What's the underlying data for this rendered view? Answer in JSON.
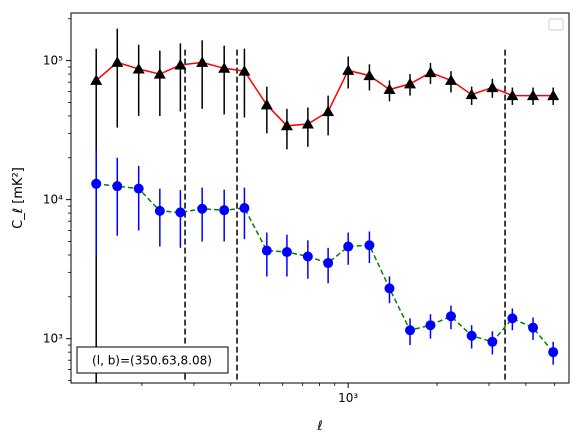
{
  "chart_data": {
    "type": "scatter",
    "xlabel": "ℓ",
    "ylabel": "C_ℓ [mK²]",
    "xscale": "log",
    "yscale": "log",
    "xlim": [
      115,
      5600
    ],
    "ylim": [
      480,
      220000
    ],
    "x_ticks": [
      {
        "value": 1000,
        "label": "10³"
      }
    ],
    "y_ticks": [
      {
        "value": 1000,
        "label": "10³"
      },
      {
        "value": 10000,
        "label": "10⁴"
      },
      {
        "value": 100000,
        "label": "10⁵"
      }
    ],
    "annotation": "(l, b)=(350.63,8.08)",
    "legend": {
      "placement": "top-right",
      "entries": []
    },
    "vlines": [
      280,
      420,
      3400
    ],
    "series": [
      {
        "marker": "triangle",
        "marker_color": "#000000",
        "line_color": "#ff0000",
        "line_style": "solid",
        "errorbar_color": "#000000",
        "x": [
          140,
          165,
          195,
          230,
          270,
          320,
          380,
          445,
          530,
          620,
          730,
          855,
          1000,
          1180,
          1380,
          1620,
          1900,
          2230,
          2620,
          3080,
          3600,
          4230,
          4950
        ],
        "y": [
          72000,
          97000,
          87000,
          80000,
          93000,
          97000,
          88000,
          84000,
          48000,
          34000,
          35000,
          43000,
          85000,
          78000,
          62000,
          68000,
          82000,
          72000,
          57000,
          64000,
          56000,
          56000,
          56000
        ],
        "err_lo": [
          72000,
          64000,
          47000,
          40000,
          50000,
          52000,
          47000,
          45000,
          18000,
          11000,
          11000,
          14000,
          22000,
          17000,
          11000,
          12000,
          14000,
          13000,
          9000,
          10000,
          8000,
          8000,
          8000
        ],
        "err_hi": [
          50000,
          73000,
          43000,
          38000,
          40000,
          43000,
          40000,
          38000,
          17000,
          11000,
          11000,
          13000,
          22000,
          16000,
          10000,
          12000,
          14000,
          12000,
          8000,
          10000,
          8000,
          8000,
          8000
        ]
      },
      {
        "marker": "circle",
        "marker_color": "#0000ff",
        "line_color": "#008000",
        "line_style": "dashed",
        "errorbar_color": "#0000ff",
        "x": [
          140,
          165,
          195,
          230,
          270,
          320,
          380,
          445,
          530,
          620,
          730,
          855,
          1000,
          1180,
          1380,
          1620,
          1900,
          2230,
          2620,
          3080,
          3600,
          4230,
          4950
        ],
        "y": [
          13000,
          12500,
          12000,
          8300,
          8100,
          8600,
          8400,
          8700,
          4300,
          4200,
          3900,
          3500,
          4600,
          4700,
          2300,
          1150,
          1250,
          1450,
          1050,
          950,
          1400,
          1200,
          800
        ],
        "err_lo": [
          9000,
          7000,
          6000,
          3700,
          3600,
          3600,
          3400,
          3500,
          1500,
          1400,
          1200,
          1000,
          1200,
          1200,
          500,
          250,
          250,
          280,
          200,
          180,
          250,
          220,
          150
        ],
        "err_hi": [
          10000,
          7500,
          5500,
          3700,
          3600,
          3600,
          3400,
          3500,
          1500,
          1400,
          1200,
          1000,
          1200,
          1200,
          500,
          250,
          250,
          280,
          200,
          180,
          250,
          220,
          150
        ]
      }
    ]
  }
}
